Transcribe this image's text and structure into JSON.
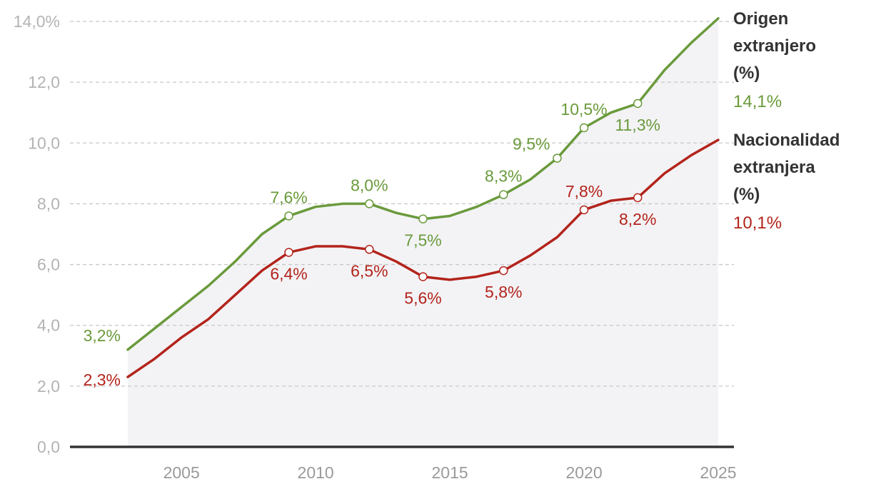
{
  "chart_data": {
    "type": "line",
    "title": "",
    "xlabel": "",
    "ylabel": "",
    "ylim": [
      0,
      14
    ],
    "xlim": [
      2001.8,
      2025
    ],
    "grid": true,
    "colors": {
      "origen": "#6a9a3c",
      "nacionalidad": "#b3241b",
      "area": "#f3f3f6",
      "grid": "#c8c8c8",
      "axis": "#333333"
    },
    "y_ticks": [
      {
        "value": 0,
        "label": "0,0"
      },
      {
        "value": 2,
        "label": "2,0"
      },
      {
        "value": 4,
        "label": "4,0"
      },
      {
        "value": 6,
        "label": "6,0"
      },
      {
        "value": 8,
        "label": "8,0"
      },
      {
        "value": 10,
        "label": "10,0"
      },
      {
        "value": 12,
        "label": "12,0"
      },
      {
        "value": 14,
        "label": "14,0%"
      }
    ],
    "x_ticks": [
      {
        "value": 2005,
        "label": "2005"
      },
      {
        "value": 2010,
        "label": "2010"
      },
      {
        "value": 2015,
        "label": "2015"
      },
      {
        "value": 2020,
        "label": "2020"
      },
      {
        "value": 2025,
        "label": "2025"
      }
    ],
    "series": [
      {
        "key": "origen",
        "name_lines": [
          "Origen",
          "extranjero",
          "(%)"
        ],
        "last_label": "14,1%",
        "x": [
          2003,
          2004,
          2005,
          2006,
          2007,
          2008,
          2009,
          2010,
          2011,
          2012,
          2013,
          2014,
          2015,
          2016,
          2017,
          2018,
          2019,
          2020,
          2021,
          2022,
          2023,
          2024,
          2025
        ],
        "values": [
          3.2,
          3.9,
          4.6,
          5.3,
          6.1,
          7.0,
          7.6,
          7.9,
          8.0,
          8.0,
          7.7,
          7.5,
          7.6,
          7.9,
          8.3,
          8.8,
          9.5,
          10.5,
          11.0,
          11.3,
          12.4,
          13.3,
          14.1
        ],
        "annotations": [
          {
            "x": 2003,
            "y": 3.2,
            "label": "3,2%",
            "pos": "left-above",
            "marker": false
          },
          {
            "x": 2009,
            "y": 7.6,
            "label": "7,6%",
            "pos": "above",
            "marker": true
          },
          {
            "x": 2012,
            "y": 8.0,
            "label": "8,0%",
            "pos": "above",
            "marker": true
          },
          {
            "x": 2014,
            "y": 7.5,
            "label": "7,5%",
            "pos": "below",
            "marker": true
          },
          {
            "x": 2017,
            "y": 8.3,
            "label": "8,3%",
            "pos": "above",
            "marker": true
          },
          {
            "x": 2019,
            "y": 9.5,
            "label": "9,5%",
            "pos": "left-above",
            "marker": true
          },
          {
            "x": 2020,
            "y": 10.5,
            "label": "10,5%",
            "pos": "above",
            "marker": true
          },
          {
            "x": 2022,
            "y": 11.3,
            "label": "11,3%",
            "pos": "below",
            "marker": true
          }
        ]
      },
      {
        "key": "nacionalidad",
        "name_lines": [
          "Nacionalidad",
          "extranjera",
          "(%)"
        ],
        "last_label": "10,1%",
        "x": [
          2003,
          2004,
          2005,
          2006,
          2007,
          2008,
          2009,
          2010,
          2011,
          2012,
          2013,
          2014,
          2015,
          2016,
          2017,
          2018,
          2019,
          2020,
          2021,
          2022,
          2023,
          2024,
          2025
        ],
        "values": [
          2.3,
          2.9,
          3.6,
          4.2,
          5.0,
          5.8,
          6.4,
          6.6,
          6.6,
          6.5,
          6.1,
          5.6,
          5.5,
          5.6,
          5.8,
          6.3,
          6.9,
          7.8,
          8.1,
          8.2,
          9.0,
          9.6,
          10.1
        ],
        "annotations": [
          {
            "x": 2003,
            "y": 2.3,
            "label": "2,3%",
            "pos": "left-below",
            "marker": false
          },
          {
            "x": 2009,
            "y": 6.4,
            "label": "6,4%",
            "pos": "below",
            "marker": true
          },
          {
            "x": 2012,
            "y": 6.5,
            "label": "6,5%",
            "pos": "below",
            "marker": true
          },
          {
            "x": 2014,
            "y": 5.6,
            "label": "5,6%",
            "pos": "below",
            "marker": true
          },
          {
            "x": 2017,
            "y": 5.8,
            "label": "5,8%",
            "pos": "below",
            "marker": true
          },
          {
            "x": 2020,
            "y": 7.8,
            "label": "7,8%",
            "pos": "above",
            "marker": true
          },
          {
            "x": 2022,
            "y": 8.2,
            "label": "8,2%",
            "pos": "below",
            "marker": true
          }
        ]
      }
    ]
  }
}
